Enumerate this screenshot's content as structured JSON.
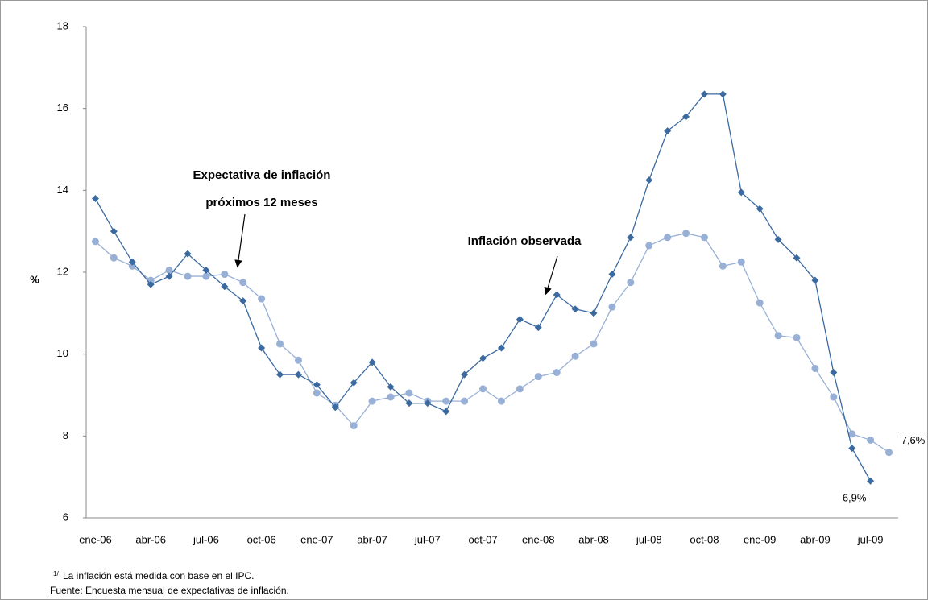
{
  "chart_data": {
    "type": "line",
    "y_label": "%",
    "categories": [
      "ene-06",
      null,
      null,
      "abr-06",
      null,
      null,
      "jul-06",
      null,
      null,
      "oct-06",
      null,
      null,
      "ene-07",
      null,
      null,
      "abr-07",
      null,
      null,
      "jul-07",
      null,
      null,
      "oct-07",
      null,
      null,
      "ene-08",
      null,
      null,
      "abr-08",
      null,
      null,
      "jul-08",
      null,
      null,
      "oct-08",
      null,
      null,
      "ene-09",
      null,
      null,
      "abr-09",
      null,
      null,
      "jul-09",
      null
    ],
    "series": [
      {
        "name": "Inflación observada",
        "color": "#3b6aa0",
        "marker": "diamond",
        "values": [
          13.8,
          13.0,
          12.25,
          11.7,
          11.9,
          12.45,
          12.05,
          11.65,
          11.3,
          10.15,
          9.5,
          9.5,
          9.25,
          8.7,
          9.3,
          9.8,
          9.2,
          8.8,
          8.8,
          8.6,
          9.5,
          9.9,
          10.15,
          10.85,
          10.65,
          11.45,
          11.1,
          11.0,
          11.95,
          12.85,
          14.25,
          15.45,
          15.8,
          16.35,
          16.35,
          13.95,
          13.55,
          12.8,
          12.35,
          11.8,
          9.55,
          7.7,
          6.9,
          null
        ],
        "value_labels": [
          null,
          null,
          null,
          null,
          null,
          null,
          null,
          null,
          null,
          null,
          null,
          null,
          null,
          null,
          null,
          null,
          null,
          null,
          null,
          null,
          null,
          null,
          null,
          null,
          null,
          null,
          null,
          null,
          null,
          null,
          null,
          null,
          null,
          null,
          null,
          null,
          null,
          null,
          null,
          null,
          null,
          null,
          "6,9%",
          null
        ]
      },
      {
        "name": "Expectativa de inflación próximos 12 meses",
        "color": "#98b0d6",
        "marker": "circle",
        "values": [
          12.75,
          12.35,
          12.15,
          11.8,
          12.05,
          11.9,
          11.9,
          11.95,
          11.75,
          11.35,
          10.25,
          9.85,
          9.05,
          8.75,
          8.25,
          8.85,
          8.95,
          9.05,
          8.85,
          8.85,
          8.85,
          9.15,
          8.85,
          9.15,
          9.45,
          9.55,
          9.95,
          10.25,
          11.15,
          11.75,
          12.65,
          12.85,
          12.95,
          12.85,
          12.15,
          12.25,
          11.25,
          10.45,
          10.4,
          9.65,
          8.95,
          8.05,
          7.9,
          7.6
        ],
        "value_labels": [
          null,
          null,
          null,
          null,
          null,
          null,
          null,
          null,
          null,
          null,
          null,
          null,
          null,
          null,
          null,
          null,
          null,
          null,
          null,
          null,
          null,
          null,
          null,
          null,
          null,
          null,
          null,
          null,
          null,
          null,
          null,
          null,
          null,
          null,
          null,
          null,
          null,
          null,
          null,
          null,
          null,
          null,
          null,
          "7,6%"
        ]
      }
    ],
    "annotations": [
      "Expectativa de inflación",
      "próximos 12 meses",
      "Inflación observada"
    ],
    "ylim": [
      6,
      18
    ],
    "yticks": [
      6,
      8,
      10,
      12,
      14,
      16,
      18
    ],
    "grid": false,
    "footnote": {
      "marker": "1/",
      "note": "La inflación está medida con base en el IPC.",
      "source": "Fuente: Encuesta mensual de expectativas de inflación."
    }
  }
}
